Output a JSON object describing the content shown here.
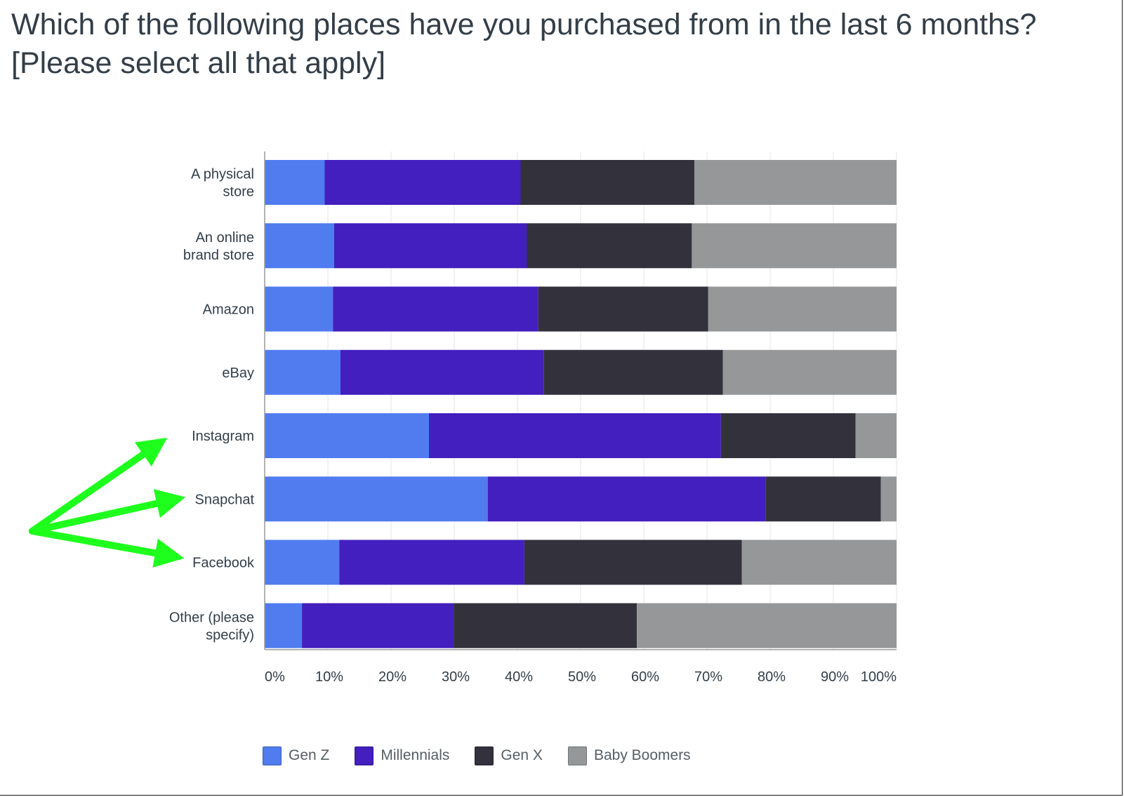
{
  "title": "Which of the following places have you purchased from in the last 6 months? [Please select all that apply]",
  "chart_data": {
    "type": "bar",
    "orientation": "horizontal",
    "stacked": true,
    "normalized": true,
    "categories": [
      "A physical store",
      "An online brand store",
      "Amazon",
      "eBay",
      "Instagram",
      "Snapchat",
      "Facebook",
      "Other (please specify)"
    ],
    "category_lines": [
      [
        "A physical",
        "store"
      ],
      [
        "An online",
        "brand store"
      ],
      [
        "Amazon"
      ],
      [
        "eBay"
      ],
      [
        "Instagram"
      ],
      [
        "Snapchat"
      ],
      [
        "Facebook"
      ],
      [
        "Other (please",
        "specify)"
      ]
    ],
    "series": [
      {
        "name": "Gen Z",
        "color": "#507cf0",
        "values": [
          9.5,
          11,
          10.8,
          12,
          26,
          35.3,
          11.8,
          5.9
        ]
      },
      {
        "name": "Millennials",
        "color": "#421fbe",
        "values": [
          31,
          30.5,
          32.5,
          32.2,
          46.2,
          44,
          29.3,
          24
        ]
      },
      {
        "name": "Gen X",
        "color": "#33323c",
        "values": [
          27.5,
          26.1,
          26.9,
          28.3,
          21.3,
          18.2,
          34.4,
          29
        ]
      },
      {
        "name": "Baby Boomers",
        "color": "#959799",
        "values": [
          32,
          32.4,
          29.8,
          27.5,
          6.5,
          2.5,
          24.5,
          41.1
        ]
      }
    ],
    "xlim": [
      0,
      100
    ],
    "xticks": [
      "0%",
      "10%",
      "20%",
      "30%",
      "40%",
      "50%",
      "60%",
      "70%",
      "80%",
      "90%",
      "100%"
    ],
    "grid": true,
    "legend": "bottom",
    "annotations": [
      {
        "type": "arrow",
        "color": "#1eff1e",
        "from": "left margin",
        "to": "Instagram"
      },
      {
        "type": "arrow",
        "color": "#1eff1e",
        "from": "left margin",
        "to": "Snapchat"
      },
      {
        "type": "arrow",
        "color": "#1eff1e",
        "from": "left margin",
        "to": "Facebook"
      }
    ]
  }
}
